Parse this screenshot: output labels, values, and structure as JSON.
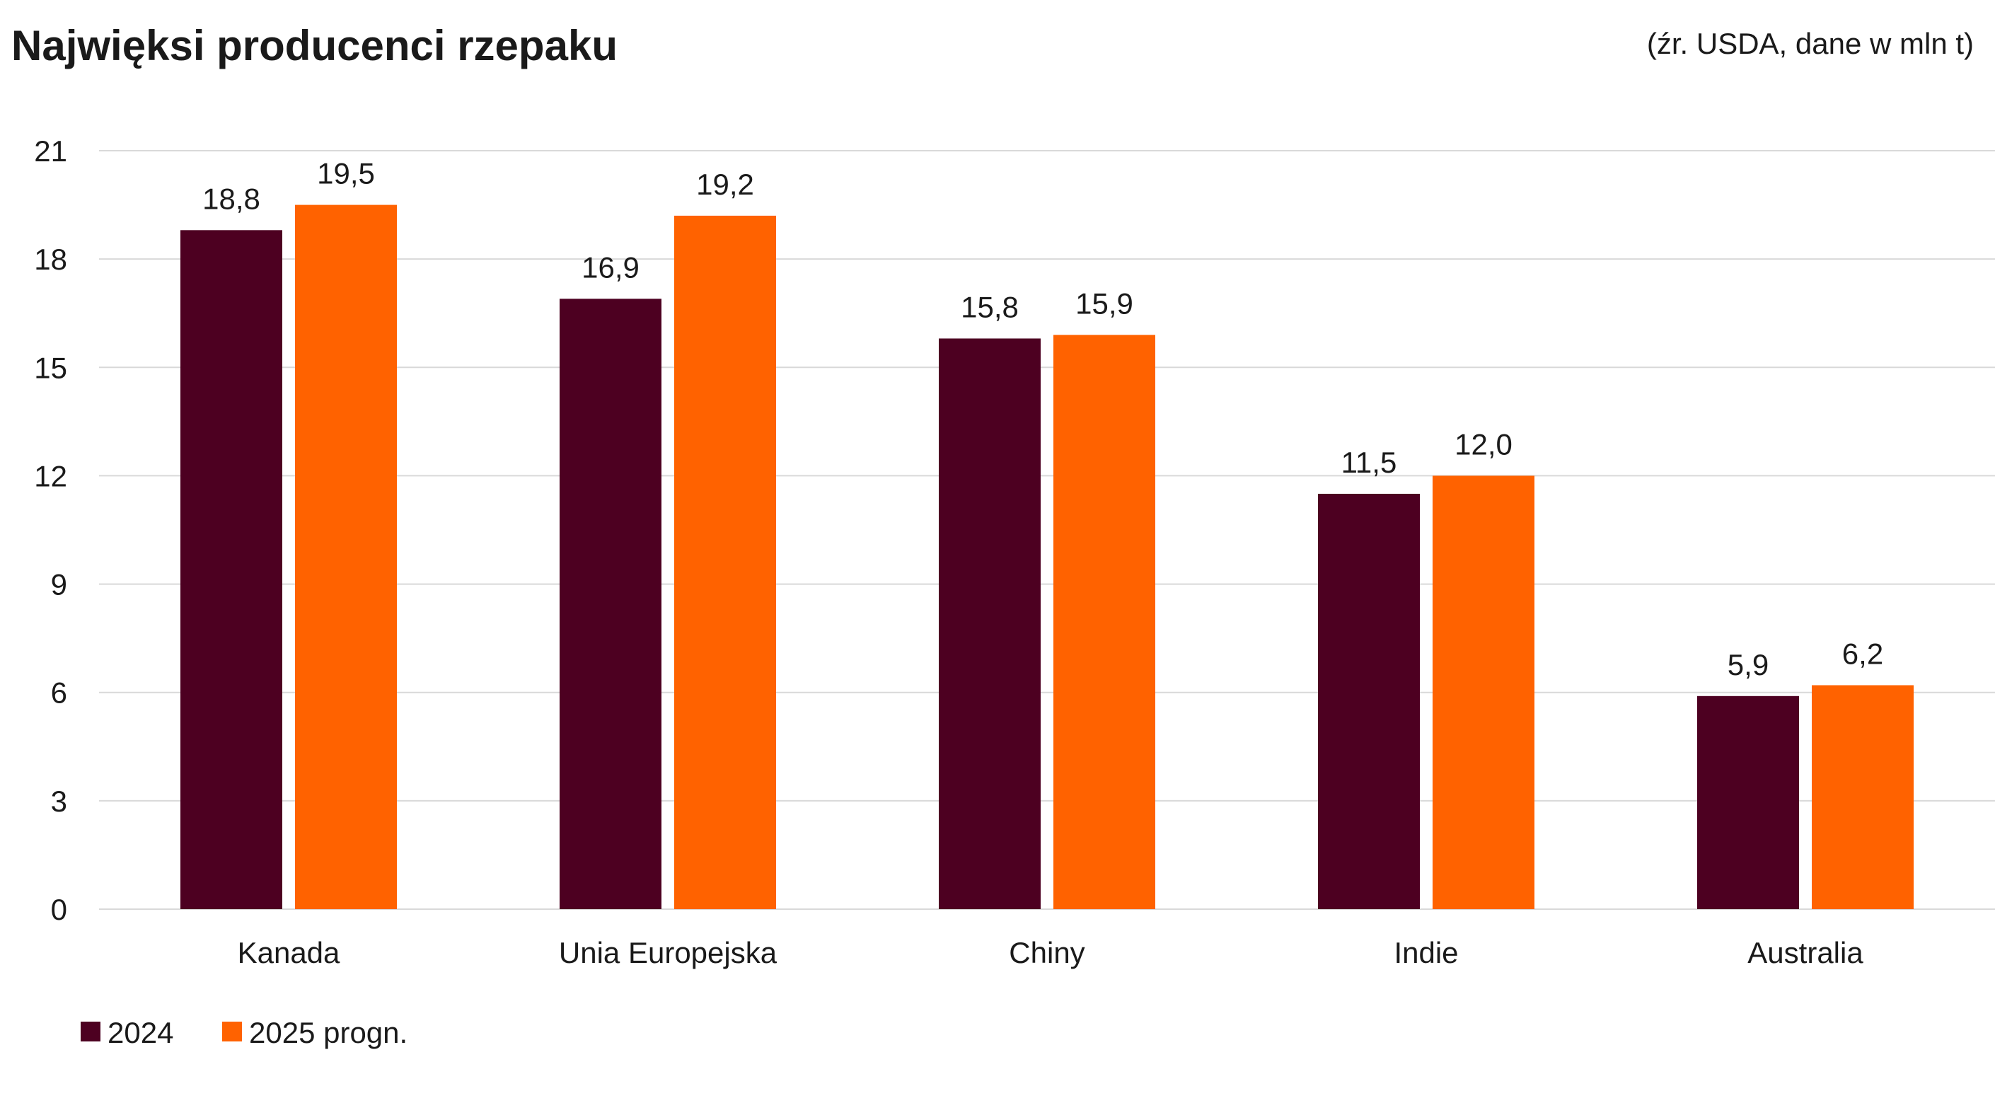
{
  "header": {
    "title": "Najwięksi producenci rzepaku",
    "source": "(źr. USDA, dane w mln t)"
  },
  "colors": {
    "series_2024": "#4d0021",
    "series_2025": "#ff6200",
    "grid": "#d9d9d9",
    "text": "#1a1a1a"
  },
  "chart_data": {
    "type": "bar",
    "categories": [
      "Kanada",
      "Unia Europejska",
      "Chiny",
      "Indie",
      "Australia"
    ],
    "series": [
      {
        "name": "2024",
        "values": [
          18.8,
          16.9,
          15.8,
          11.5,
          5.9
        ],
        "labels": [
          "18,8",
          "16,9",
          "15,8",
          "11,5",
          "5,9"
        ]
      },
      {
        "name": "2025 progn.",
        "values": [
          19.5,
          19.2,
          15.9,
          12.0,
          6.2
        ],
        "labels": [
          "19,5",
          "19,2",
          "15,9",
          "12,0",
          "6,2"
        ]
      }
    ],
    "yticks": [
      "0",
      "3",
      "6",
      "9",
      "12",
      "15",
      "18",
      "21"
    ],
    "ylim": [
      0,
      21
    ],
    "grid": true,
    "legend": "bottom-left",
    "xlabel": "",
    "ylabel": ""
  }
}
